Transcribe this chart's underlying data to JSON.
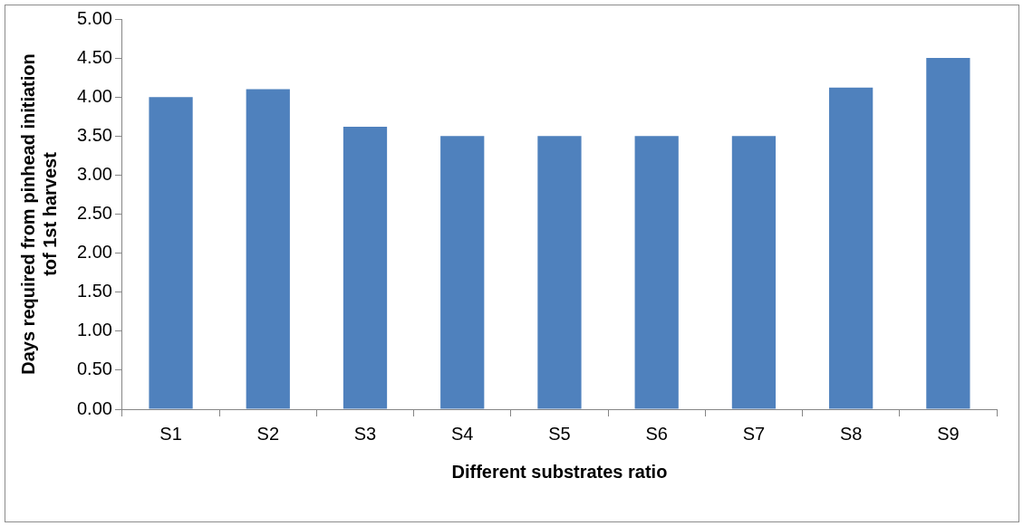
{
  "chart_data": {
    "type": "bar",
    "xlabel": "Different substrates ratio",
    "ylabel": "Days required from pinhead initiation\ntof 1st harvest",
    "categories": [
      "S1",
      "S2",
      "S3",
      "S4",
      "S5",
      "S6",
      "S7",
      "S8",
      "S9"
    ],
    "values": [
      4.0,
      4.1,
      3.62,
      3.5,
      3.5,
      3.5,
      3.5,
      4.12,
      4.5
    ],
    "color": "#4f81bd",
    "ylim": [
      0,
      5
    ],
    "yticks": [
      {
        "value": 0,
        "label": "0.00"
      },
      {
        "value": 0.5,
        "label": "0.50"
      },
      {
        "value": 1,
        "label": "1.00"
      },
      {
        "value": 1.5,
        "label": "1.50"
      },
      {
        "value": 2,
        "label": "2.00"
      },
      {
        "value": 2.5,
        "label": "2.50"
      },
      {
        "value": 3,
        "label": "3.00"
      },
      {
        "value": 3.5,
        "label": "3.50"
      },
      {
        "value": 4,
        "label": "4.00"
      },
      {
        "value": 4.5,
        "label": "4.50"
      },
      {
        "value": 5,
        "label": "5.00"
      }
    ],
    "grid": false,
    "legend": false
  }
}
